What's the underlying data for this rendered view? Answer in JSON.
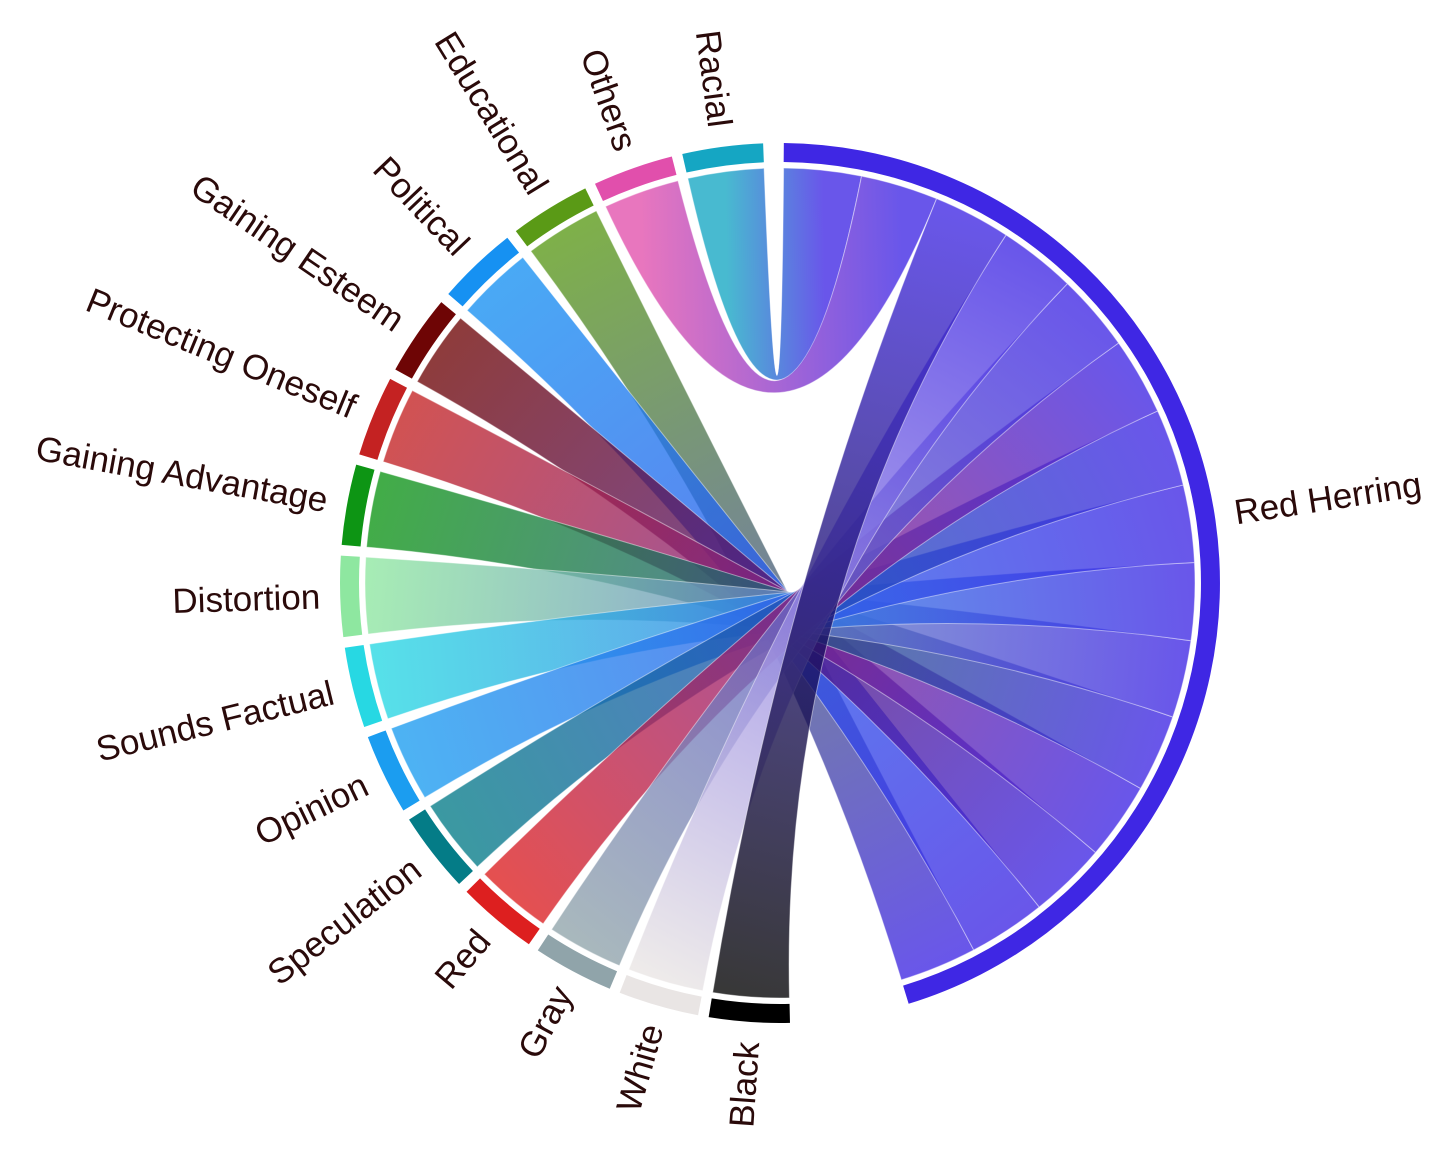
{
  "diagram": {
    "type": "chord",
    "target": {
      "name": "Red Herring",
      "color": "#3f27e4"
    },
    "sources": [
      {
        "name": "Racial",
        "color": "#15a6c3",
        "value": 1
      },
      {
        "name": "Others",
        "color": "#e14fac",
        "value": 1
      },
      {
        "name": "Educational",
        "color": "#5a9a16",
        "value": 1
      },
      {
        "name": "Political",
        "color": "#1691f2",
        "value": 1
      },
      {
        "name": "Gaining Esteem",
        "color": "#6e0505",
        "value": 1
      },
      {
        "name": "Protecting Oneself",
        "color": "#c42222",
        "value": 1
      },
      {
        "name": "Gaining Advantage",
        "color": "#0d9514",
        "value": 1
      },
      {
        "name": "Distortion",
        "color": "#8ee7a0",
        "value": 1
      },
      {
        "name": "Sounds Factual",
        "color": "#27d8e3",
        "value": 1
      },
      {
        "name": "Opinion",
        "color": "#1b9df0",
        "value": 1
      },
      {
        "name": "Speculation",
        "color": "#047c87",
        "value": 1
      },
      {
        "name": "Red",
        "color": "#dd1f1f",
        "value": 1
      },
      {
        "name": "Gray",
        "color": "#90a4aa",
        "value": 1
      },
      {
        "name": "White",
        "color": "#e9e5e4",
        "value": 1
      },
      {
        "name": "Black",
        "color": "#000000",
        "value": 1
      }
    ],
    "target_order": [
      "Racial",
      "Others",
      "Black",
      "White",
      "Gray",
      "Red",
      "Speculation",
      "Opinion",
      "Sounds Factual",
      "Distortion",
      "Gaining Advantage",
      "Protecting Oneself",
      "Gaining Esteem",
      "Political",
      "Educational"
    ]
  }
}
